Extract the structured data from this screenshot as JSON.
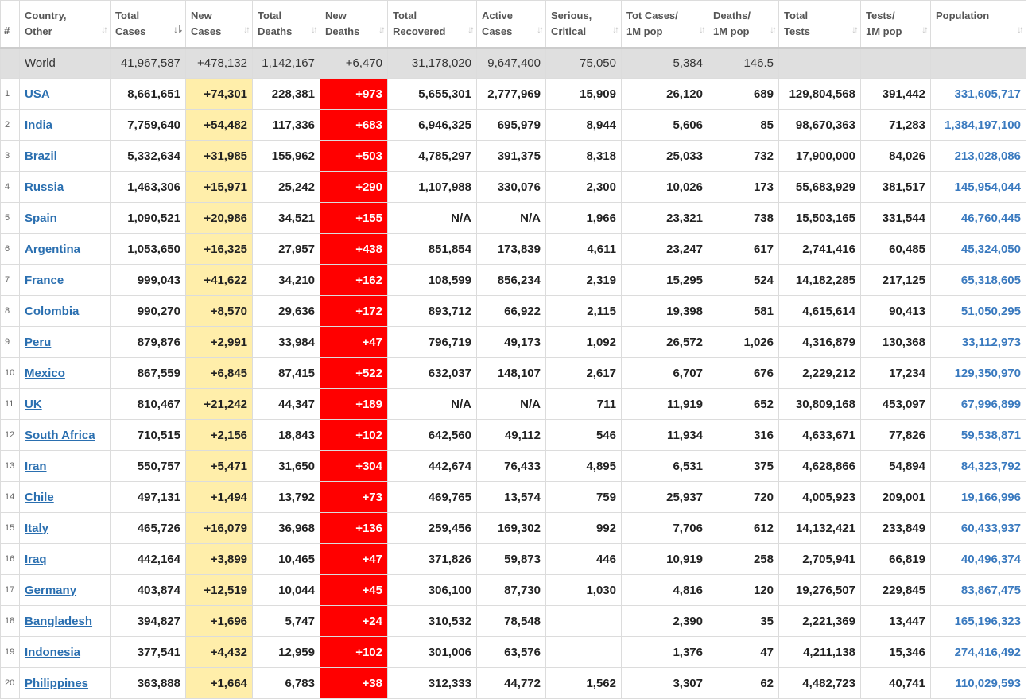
{
  "headers": [
    {
      "l1": "#",
      "l2": ""
    },
    {
      "l1": "Country,",
      "l2": "Other"
    },
    {
      "l1": "Total",
      "l2": "Cases"
    },
    {
      "l1": "New",
      "l2": "Cases"
    },
    {
      "l1": "Total",
      "l2": "Deaths"
    },
    {
      "l1": "New",
      "l2": "Deaths"
    },
    {
      "l1": "Total",
      "l2": "Recovered"
    },
    {
      "l1": "Active",
      "l2": "Cases"
    },
    {
      "l1": "Serious,",
      "l2": "Critical"
    },
    {
      "l1": "Tot Cases/",
      "l2": "1M pop"
    },
    {
      "l1": "Deaths/",
      "l2": "1M pop"
    },
    {
      "l1": "Total",
      "l2": "Tests"
    },
    {
      "l1": "Tests/",
      "l2": "1M pop"
    },
    {
      "l1": "Population",
      "l2": ""
    }
  ],
  "world": {
    "country": "World",
    "total_cases": "41,967,587",
    "new_cases": "+478,132",
    "total_deaths": "1,142,167",
    "new_deaths": "+6,470",
    "total_recovered": "31,178,020",
    "active_cases": "9,647,400",
    "serious": "75,050",
    "cases_per_m": "5,384",
    "deaths_per_m": "146.5",
    "total_tests": "",
    "tests_per_m": "",
    "population": ""
  },
  "rows": [
    {
      "rank": "1",
      "country": "USA",
      "total_cases": "8,661,651",
      "new_cases": "+74,301",
      "total_deaths": "228,381",
      "new_deaths": "+973",
      "total_recovered": "5,655,301",
      "active_cases": "2,777,969",
      "serious": "15,909",
      "cases_per_m": "26,120",
      "deaths_per_m": "689",
      "total_tests": "129,804,568",
      "tests_per_m": "391,442",
      "population": "331,605,717"
    },
    {
      "rank": "2",
      "country": "India",
      "total_cases": "7,759,640",
      "new_cases": "+54,482",
      "total_deaths": "117,336",
      "new_deaths": "+683",
      "total_recovered": "6,946,325",
      "active_cases": "695,979",
      "serious": "8,944",
      "cases_per_m": "5,606",
      "deaths_per_m": "85",
      "total_tests": "98,670,363",
      "tests_per_m": "71,283",
      "population": "1,384,197,100"
    },
    {
      "rank": "3",
      "country": "Brazil",
      "total_cases": "5,332,634",
      "new_cases": "+31,985",
      "total_deaths": "155,962",
      "new_deaths": "+503",
      "total_recovered": "4,785,297",
      "active_cases": "391,375",
      "serious": "8,318",
      "cases_per_m": "25,033",
      "deaths_per_m": "732",
      "total_tests": "17,900,000",
      "tests_per_m": "84,026",
      "population": "213,028,086"
    },
    {
      "rank": "4",
      "country": "Russia",
      "total_cases": "1,463,306",
      "new_cases": "+15,971",
      "total_deaths": "25,242",
      "new_deaths": "+290",
      "total_recovered": "1,107,988",
      "active_cases": "330,076",
      "serious": "2,300",
      "cases_per_m": "10,026",
      "deaths_per_m": "173",
      "total_tests": "55,683,929",
      "tests_per_m": "381,517",
      "population": "145,954,044"
    },
    {
      "rank": "5",
      "country": "Spain",
      "total_cases": "1,090,521",
      "new_cases": "+20,986",
      "total_deaths": "34,521",
      "new_deaths": "+155",
      "total_recovered": "N/A",
      "active_cases": "N/A",
      "serious": "1,966",
      "cases_per_m": "23,321",
      "deaths_per_m": "738",
      "total_tests": "15,503,165",
      "tests_per_m": "331,544",
      "population": "46,760,445"
    },
    {
      "rank": "6",
      "country": "Argentina",
      "total_cases": "1,053,650",
      "new_cases": "+16,325",
      "total_deaths": "27,957",
      "new_deaths": "+438",
      "total_recovered": "851,854",
      "active_cases": "173,839",
      "serious": "4,611",
      "cases_per_m": "23,247",
      "deaths_per_m": "617",
      "total_tests": "2,741,416",
      "tests_per_m": "60,485",
      "population": "45,324,050"
    },
    {
      "rank": "7",
      "country": "France",
      "total_cases": "999,043",
      "new_cases": "+41,622",
      "total_deaths": "34,210",
      "new_deaths": "+162",
      "total_recovered": "108,599",
      "active_cases": "856,234",
      "serious": "2,319",
      "cases_per_m": "15,295",
      "deaths_per_m": "524",
      "total_tests": "14,182,285",
      "tests_per_m": "217,125",
      "population": "65,318,605"
    },
    {
      "rank": "8",
      "country": "Colombia",
      "total_cases": "990,270",
      "new_cases": "+8,570",
      "total_deaths": "29,636",
      "new_deaths": "+172",
      "total_recovered": "893,712",
      "active_cases": "66,922",
      "serious": "2,115",
      "cases_per_m": "19,398",
      "deaths_per_m": "581",
      "total_tests": "4,615,614",
      "tests_per_m": "90,413",
      "population": "51,050,295"
    },
    {
      "rank": "9",
      "country": "Peru",
      "total_cases": "879,876",
      "new_cases": "+2,991",
      "total_deaths": "33,984",
      "new_deaths": "+47",
      "total_recovered": "796,719",
      "active_cases": "49,173",
      "serious": "1,092",
      "cases_per_m": "26,572",
      "deaths_per_m": "1,026",
      "total_tests": "4,316,879",
      "tests_per_m": "130,368",
      "population": "33,112,973"
    },
    {
      "rank": "10",
      "country": "Mexico",
      "total_cases": "867,559",
      "new_cases": "+6,845",
      "total_deaths": "87,415",
      "new_deaths": "+522",
      "total_recovered": "632,037",
      "active_cases": "148,107",
      "serious": "2,617",
      "cases_per_m": "6,707",
      "deaths_per_m": "676",
      "total_tests": "2,229,212",
      "tests_per_m": "17,234",
      "population": "129,350,970"
    },
    {
      "rank": "11",
      "country": "UK",
      "total_cases": "810,467",
      "new_cases": "+21,242",
      "total_deaths": "44,347",
      "new_deaths": "+189",
      "total_recovered": "N/A",
      "active_cases": "N/A",
      "serious": "711",
      "cases_per_m": "11,919",
      "deaths_per_m": "652",
      "total_tests": "30,809,168",
      "tests_per_m": "453,097",
      "population": "67,996,899"
    },
    {
      "rank": "12",
      "country": "South Africa",
      "total_cases": "710,515",
      "new_cases": "+2,156",
      "total_deaths": "18,843",
      "new_deaths": "+102",
      "total_recovered": "642,560",
      "active_cases": "49,112",
      "serious": "546",
      "cases_per_m": "11,934",
      "deaths_per_m": "316",
      "total_tests": "4,633,671",
      "tests_per_m": "77,826",
      "population": "59,538,871"
    },
    {
      "rank": "13",
      "country": "Iran",
      "total_cases": "550,757",
      "new_cases": "+5,471",
      "total_deaths": "31,650",
      "new_deaths": "+304",
      "total_recovered": "442,674",
      "active_cases": "76,433",
      "serious": "4,895",
      "cases_per_m": "6,531",
      "deaths_per_m": "375",
      "total_tests": "4,628,866",
      "tests_per_m": "54,894",
      "population": "84,323,792"
    },
    {
      "rank": "14",
      "country": "Chile",
      "total_cases": "497,131",
      "new_cases": "+1,494",
      "total_deaths": "13,792",
      "new_deaths": "+73",
      "total_recovered": "469,765",
      "active_cases": "13,574",
      "serious": "759",
      "cases_per_m": "25,937",
      "deaths_per_m": "720",
      "total_tests": "4,005,923",
      "tests_per_m": "209,001",
      "population": "19,166,996"
    },
    {
      "rank": "15",
      "country": "Italy",
      "total_cases": "465,726",
      "new_cases": "+16,079",
      "total_deaths": "36,968",
      "new_deaths": "+136",
      "total_recovered": "259,456",
      "active_cases": "169,302",
      "serious": "992",
      "cases_per_m": "7,706",
      "deaths_per_m": "612",
      "total_tests": "14,132,421",
      "tests_per_m": "233,849",
      "population": "60,433,937"
    },
    {
      "rank": "16",
      "country": "Iraq",
      "total_cases": "442,164",
      "new_cases": "+3,899",
      "total_deaths": "10,465",
      "new_deaths": "+47",
      "total_recovered": "371,826",
      "active_cases": "59,873",
      "serious": "446",
      "cases_per_m": "10,919",
      "deaths_per_m": "258",
      "total_tests": "2,705,941",
      "tests_per_m": "66,819",
      "population": "40,496,374"
    },
    {
      "rank": "17",
      "country": "Germany",
      "total_cases": "403,874",
      "new_cases": "+12,519",
      "total_deaths": "10,044",
      "new_deaths": "+45",
      "total_recovered": "306,100",
      "active_cases": "87,730",
      "serious": "1,030",
      "cases_per_m": "4,816",
      "deaths_per_m": "120",
      "total_tests": "19,276,507",
      "tests_per_m": "229,845",
      "population": "83,867,475"
    },
    {
      "rank": "18",
      "country": "Bangladesh",
      "total_cases": "394,827",
      "new_cases": "+1,696",
      "total_deaths": "5,747",
      "new_deaths": "+24",
      "total_recovered": "310,532",
      "active_cases": "78,548",
      "serious": "",
      "cases_per_m": "2,390",
      "deaths_per_m": "35",
      "total_tests": "2,221,369",
      "tests_per_m": "13,447",
      "population": "165,196,323"
    },
    {
      "rank": "19",
      "country": "Indonesia",
      "total_cases": "377,541",
      "new_cases": "+4,432",
      "total_deaths": "12,959",
      "new_deaths": "+102",
      "total_recovered": "301,006",
      "active_cases": "63,576",
      "serious": "",
      "cases_per_m": "1,376",
      "deaths_per_m": "47",
      "total_tests": "4,211,138",
      "tests_per_m": "15,346",
      "population": "274,416,492"
    },
    {
      "rank": "20",
      "country": "Philippines",
      "total_cases": "363,888",
      "new_cases": "+1,664",
      "total_deaths": "6,783",
      "new_deaths": "+38",
      "total_recovered": "312,333",
      "active_cases": "44,772",
      "serious": "1,562",
      "cases_per_m": "3,307",
      "deaths_per_m": "62",
      "total_tests": "4,482,723",
      "tests_per_m": "40,741",
      "population": "110,029,593"
    }
  ]
}
